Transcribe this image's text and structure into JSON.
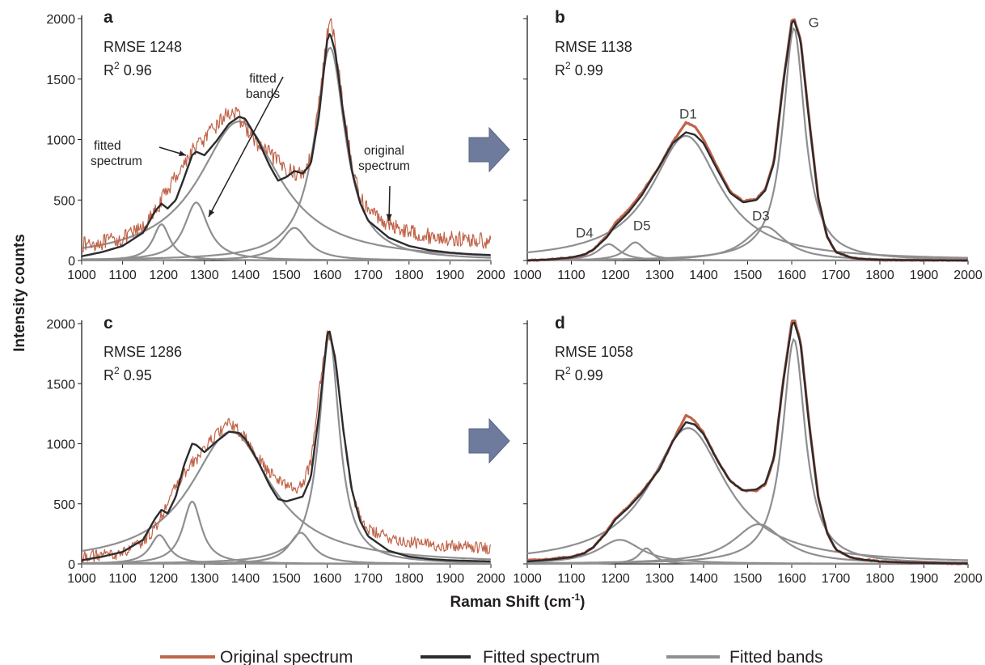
{
  "colors": {
    "original": "#c0644a",
    "fitted": "#2b2b2d",
    "bands": "#8f8f92",
    "arrow": "#6f7b9c",
    "text": "#231f20"
  },
  "y_axis_title": "Intensity counts",
  "x_axis_title_main": "Raman Shift (cm",
  "x_axis_title_sup": "-1",
  "x_axis_title_end": ")",
  "legend": [
    {
      "label": "Original spectrum",
      "color": "#c0644a"
    },
    {
      "label": "Fitted spectrum",
      "color": "#2b2b2d"
    },
    {
      "label": "Fitted bands",
      "color": "#8f8f92"
    }
  ],
  "x_ticks": [
    "1000",
    "1100",
    "1200",
    "1300",
    "1400",
    "1500",
    "1600",
    "1700",
    "1800",
    "1900",
    "2000"
  ],
  "y_ticks": [
    "0",
    "500",
    "1000",
    "1500",
    "2000"
  ],
  "transition_arrow_icon": "right-arrow-icon",
  "chart_data": [
    {
      "type": "line",
      "panel": "a",
      "rmse": "RMSE 1248",
      "r2_label": "R",
      "r2_sup": "2",
      "r2_value": " 0.96",
      "xlim": [
        1000,
        2000
      ],
      "ylim": [
        0,
        2000
      ],
      "grid": false,
      "annotations": [
        "fitted",
        "spectrum",
        "fitted",
        "bands",
        "original",
        "spectrum"
      ],
      "noise": 130,
      "series": [
        {
          "role": "original",
          "x": [
            1000,
            1050,
            1100,
            1150,
            1180,
            1200,
            1230,
            1260,
            1280,
            1300,
            1330,
            1360,
            1380,
            1400,
            1430,
            1460,
            1490,
            1520,
            1540,
            1560,
            1580,
            1600,
            1610,
            1620,
            1640,
            1660,
            1680,
            1700,
            1750,
            1800,
            1850,
            1900,
            1950,
            2000
          ],
          "y": [
            130,
            150,
            180,
            270,
            400,
            530,
            700,
            850,
            950,
            1000,
            1120,
            1230,
            1200,
            1110,
            950,
            880,
            780,
            720,
            720,
            850,
            1300,
            1880,
            1950,
            1800,
            1250,
            800,
            520,
            420,
            300,
            240,
            200,
            180,
            170,
            160
          ]
        },
        {
          "role": "fitted",
          "x": [
            1000,
            1050,
            1100,
            1150,
            1180,
            1195,
            1210,
            1230,
            1250,
            1270,
            1280,
            1300,
            1330,
            1360,
            1385,
            1400,
            1430,
            1460,
            1480,
            1500,
            1520,
            1540,
            1560,
            1580,
            1600,
            1607,
            1620,
            1640,
            1660,
            1680,
            1700,
            1750,
            1800,
            1850,
            1900,
            1950,
            2000
          ],
          "y": [
            35,
            70,
            120,
            230,
            410,
            470,
            430,
            500,
            680,
            870,
            900,
            870,
            990,
            1130,
            1190,
            1170,
            1000,
            780,
            660,
            690,
            740,
            720,
            800,
            1200,
            1820,
            1880,
            1720,
            1200,
            750,
            480,
            330,
            190,
            120,
            85,
            65,
            52,
            45
          ]
        },
        {
          "role": "bands",
          "peaks": [
            {
              "center": 1195,
              "height": 300,
              "fwhm": 50
            },
            {
              "center": 1280,
              "height": 480,
              "fwhm": 70
            },
            {
              "center": 1385,
              "height": 1150,
              "fwhm": 240
            },
            {
              "center": 1520,
              "height": 270,
              "fwhm": 80
            },
            {
              "center": 1607,
              "height": 1760,
              "fwhm": 90
            }
          ]
        }
      ]
    },
    {
      "type": "line",
      "panel": "b",
      "rmse": "RMSE 1138",
      "r2_label": "R",
      "r2_sup": "2",
      "r2_value": " 0.99",
      "xlim": [
        1000,
        2000
      ],
      "ylim": [
        0,
        2000
      ],
      "grid": false,
      "band_labels": [
        {
          "text": "G",
          "x": 1650,
          "y": 1930
        },
        {
          "text": "D1",
          "x": 1365,
          "y": 1175
        },
        {
          "text": "D4",
          "x": 1130,
          "y": 190
        },
        {
          "text": "D5",
          "x": 1260,
          "y": 250
        },
        {
          "text": "D3",
          "x": 1530,
          "y": 330
        }
      ],
      "noise": 8,
      "series": [
        {
          "role": "original",
          "x": [
            1000,
            1050,
            1100,
            1130,
            1150,
            1180,
            1200,
            1230,
            1260,
            1300,
            1330,
            1360,
            1380,
            1400,
            1430,
            1460,
            1490,
            1520,
            1540,
            1560,
            1580,
            1600,
            1605,
            1620,
            1640,
            1660,
            1680,
            1700,
            1730,
            1750,
            1800,
            1850,
            1900,
            1950,
            2000
          ],
          "y": [
            0,
            8,
            25,
            50,
            90,
            200,
            310,
            420,
            560,
            780,
            980,
            1140,
            1110,
            1000,
            780,
            570,
            490,
            510,
            590,
            820,
            1450,
            1980,
            2000,
            1830,
            1150,
            520,
            200,
            70,
            30,
            15,
            5,
            3,
            2,
            1,
            0
          ]
        },
        {
          "role": "fitted",
          "x": [
            1000,
            1050,
            1100,
            1130,
            1150,
            1180,
            1200,
            1230,
            1260,
            1300,
            1330,
            1360,
            1380,
            1400,
            1430,
            1460,
            1490,
            1520,
            1540,
            1560,
            1580,
            1600,
            1605,
            1620,
            1640,
            1660,
            1680,
            1700,
            1730,
            1750,
            1800,
            1850,
            1900,
            1950,
            2000
          ],
          "y": [
            0,
            8,
            25,
            50,
            90,
            190,
            290,
            400,
            540,
            780,
            970,
            1060,
            1040,
            970,
            760,
            560,
            480,
            500,
            580,
            810,
            1450,
            1960,
            1990,
            1820,
            1140,
            520,
            200,
            70,
            30,
            15,
            5,
            3,
            2,
            1,
            0
          ]
        },
        {
          "role": "bands",
          "peaks": [
            {
              "center": 1185,
              "height": 135,
              "fwhm": 60
            },
            {
              "center": 1245,
              "height": 150,
              "fwhm": 55
            },
            {
              "center": 1360,
              "height": 1030,
              "fwhm": 190
            },
            {
              "center": 1540,
              "height": 280,
              "fwhm": 110
            },
            {
              "center": 1605,
              "height": 1920,
              "fwhm": 60
            }
          ]
        }
      ]
    },
    {
      "type": "line",
      "panel": "c",
      "rmse": "RMSE 1286",
      "r2_label": "R",
      "r2_sup": "2",
      "r2_value": " 0.95",
      "xlim": [
        1000,
        2000
      ],
      "ylim": [
        0,
        2000
      ],
      "grid": false,
      "noise": 100,
      "series": [
        {
          "role": "original",
          "x": [
            1000,
            1050,
            1100,
            1150,
            1180,
            1200,
            1230,
            1260,
            1280,
            1300,
            1330,
            1360,
            1380,
            1400,
            1430,
            1460,
            1490,
            1520,
            1540,
            1560,
            1580,
            1600,
            1610,
            1620,
            1640,
            1660,
            1680,
            1700,
            1750,
            1800,
            1850,
            1900,
            1950,
            2000
          ],
          "y": [
            60,
            70,
            90,
            180,
            300,
            440,
            640,
            800,
            870,
            960,
            1080,
            1170,
            1120,
            1040,
            880,
            760,
            680,
            620,
            660,
            850,
            1450,
            1930,
            1900,
            1700,
            1100,
            600,
            380,
            280,
            220,
            180,
            160,
            150,
            140,
            130
          ]
        },
        {
          "role": "fitted",
          "x": [
            1000,
            1050,
            1100,
            1150,
            1180,
            1195,
            1210,
            1230,
            1250,
            1270,
            1280,
            1300,
            1330,
            1360,
            1385,
            1400,
            1430,
            1460,
            1480,
            1500,
            1520,
            1540,
            1560,
            1580,
            1600,
            1605,
            1620,
            1640,
            1660,
            1680,
            1700,
            1750,
            1800,
            1850,
            1900,
            1950,
            2000
          ],
          "y": [
            30,
            60,
            100,
            200,
            380,
            450,
            420,
            560,
            820,
            1000,
            990,
            930,
            1020,
            1100,
            1090,
            1040,
            860,
            650,
            540,
            520,
            540,
            560,
            720,
            1250,
            1900,
            1950,
            1700,
            1100,
            620,
            360,
            230,
            110,
            60,
            40,
            30,
            25,
            20
          ]
        },
        {
          "role": "bands",
          "peaks": [
            {
              "center": 1190,
              "height": 240,
              "fwhm": 55
            },
            {
              "center": 1270,
              "height": 520,
              "fwhm": 55
            },
            {
              "center": 1365,
              "height": 1100,
              "fwhm": 240
            },
            {
              "center": 1535,
              "height": 260,
              "fwhm": 70
            },
            {
              "center": 1605,
              "height": 1900,
              "fwhm": 60
            }
          ]
        }
      ]
    },
    {
      "type": "line",
      "panel": "d",
      "rmse": "RMSE 1058",
      "r2_label": "R",
      "r2_sup": "2",
      "r2_value": " 0.99",
      "xlim": [
        1000,
        2000
      ],
      "ylim": [
        0,
        2000
      ],
      "grid": false,
      "noise": 10,
      "series": [
        {
          "role": "original",
          "x": [
            1000,
            1050,
            1100,
            1130,
            1150,
            1180,
            1200,
            1230,
            1260,
            1300,
            1330,
            1360,
            1380,
            1400,
            1430,
            1460,
            1490,
            1520,
            1540,
            1560,
            1580,
            1600,
            1605,
            1620,
            1640,
            1660,
            1680,
            1700,
            1730,
            1750,
            1800,
            1850,
            1900,
            1950,
            2000
          ],
          "y": [
            30,
            40,
            60,
            90,
            140,
            270,
            380,
            480,
            600,
            790,
            1020,
            1240,
            1190,
            1090,
            870,
            690,
            610,
            610,
            660,
            880,
            1500,
            2010,
            2050,
            1850,
            1150,
            560,
            260,
            120,
            55,
            40,
            20,
            12,
            8,
            5,
            3
          ]
        },
        {
          "role": "fitted",
          "x": [
            1000,
            1050,
            1100,
            1130,
            1150,
            1180,
            1200,
            1230,
            1260,
            1300,
            1330,
            1360,
            1380,
            1400,
            1430,
            1460,
            1490,
            1520,
            1540,
            1560,
            1580,
            1600,
            1605,
            1620,
            1640,
            1660,
            1680,
            1700,
            1730,
            1750,
            1800,
            1850,
            1900,
            1950,
            2000
          ],
          "y": [
            20,
            35,
            55,
            90,
            140,
            260,
            370,
            470,
            590,
            790,
            1020,
            1180,
            1160,
            1080,
            870,
            690,
            610,
            620,
            670,
            890,
            1500,
            1980,
            2020,
            1840,
            1140,
            560,
            260,
            120,
            60,
            40,
            20,
            12,
            8,
            5,
            3
          ]
        },
        {
          "role": "bands",
          "peaks": [
            {
              "center": 1210,
              "height": 200,
              "fwhm": 120
            },
            {
              "center": 1270,
              "height": 130,
              "fwhm": 40
            },
            {
              "center": 1365,
              "height": 1130,
              "fwhm": 210
            },
            {
              "center": 1525,
              "height": 330,
              "fwhm": 140
            },
            {
              "center": 1605,
              "height": 1870,
              "fwhm": 62
            }
          ]
        }
      ]
    }
  ]
}
